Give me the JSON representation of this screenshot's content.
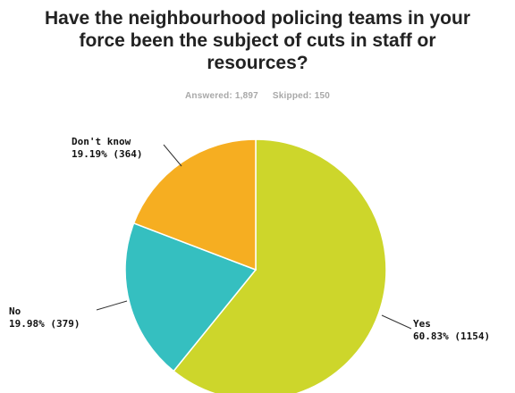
{
  "chart_data": {
    "type": "pie",
    "title": "Have the neighbourhood policing teams in your force been the subject of cuts in staff or resources?",
    "answered_label": "Answered: 1,897",
    "skipped_label": "Skipped: 150",
    "slices": [
      {
        "label": "Yes",
        "percent": 60.83,
        "count": 1154,
        "value_label": "60.83% (1154)",
        "color": "#cdd62b"
      },
      {
        "label": "No",
        "percent": 19.98,
        "count": 379,
        "value_label": "19.98% (379)",
        "color": "#35bfc0"
      },
      {
        "label": "Don't know",
        "percent": 19.19,
        "count": 364,
        "value_label": "19.19% (364)",
        "color": "#f6ae21"
      }
    ]
  }
}
